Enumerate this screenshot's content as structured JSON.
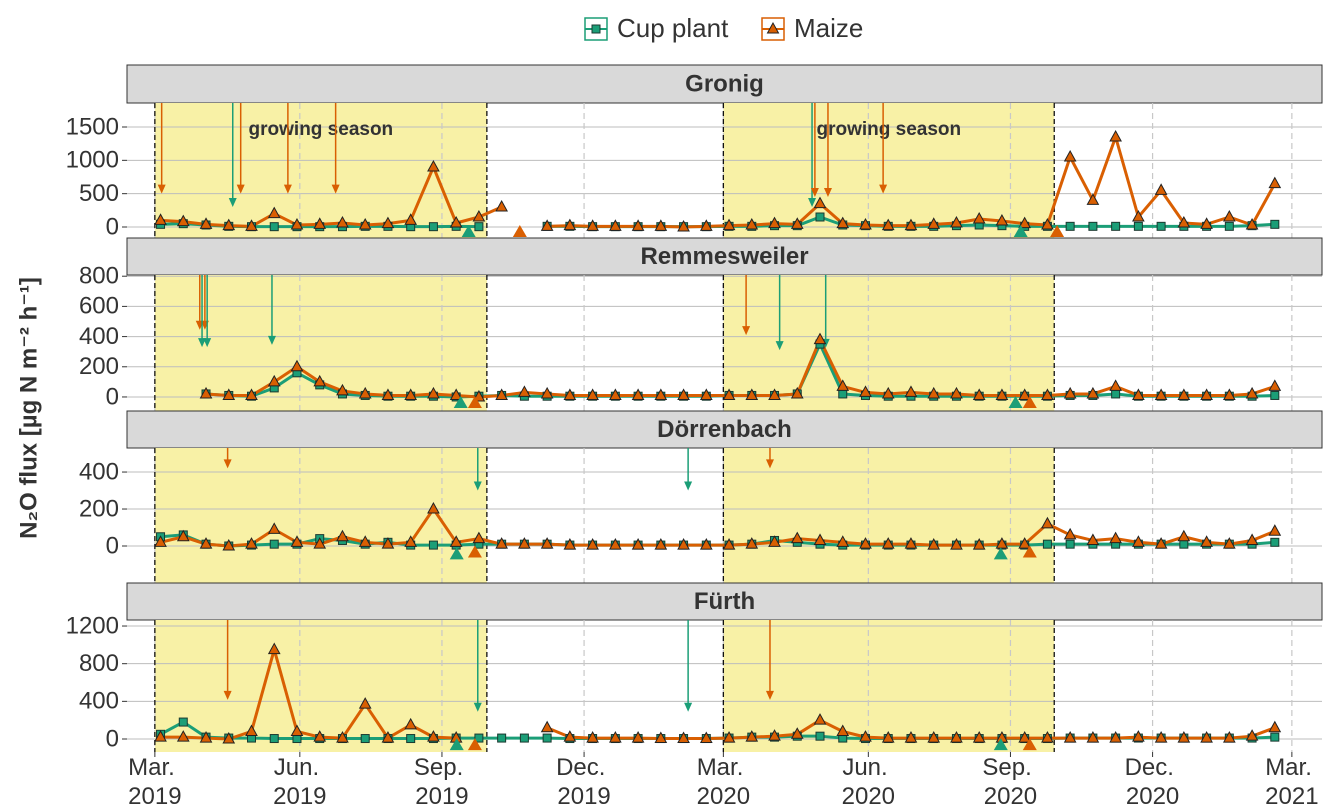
{
  "chart_data": {
    "type": "line",
    "y_label": "N₂O flux [µg N m⁻² h⁻¹]",
    "series": [
      {
        "name": "Cup plant",
        "color": "#1b9e77",
        "marker": "square"
      },
      {
        "name": "Maize",
        "color": "#d95f02",
        "marker": "triangle"
      }
    ],
    "x": [
      2019.17,
      2019.21,
      2019.25,
      2019.29,
      2019.33,
      2019.37,
      2019.41,
      2019.45,
      2019.49,
      2019.53,
      2019.57,
      2019.61,
      2019.65,
      2019.69,
      2019.73,
      2019.77,
      2019.81,
      2019.85,
      2019.89,
      2019.93,
      2019.97,
      2020.01,
      2020.05,
      2020.09,
      2020.13,
      2020.17,
      2020.21,
      2020.25,
      2020.29,
      2020.33,
      2020.37,
      2020.41,
      2020.45,
      2020.49,
      2020.53,
      2020.57,
      2020.61,
      2020.65,
      2020.69,
      2020.73,
      2020.77,
      2020.81,
      2020.85,
      2020.89,
      2020.93,
      2020.97,
      2021.01,
      2021.05,
      2021.09,
      2021.13
    ],
    "xlim": [
      2019.111,
      2021.213
    ],
    "xticks": [
      {
        "value": 2019.16,
        "label": "Mar. 2019"
      },
      {
        "value": 2019.415,
        "label": "Jun. 2019"
      },
      {
        "value": 2019.665,
        "label": "Sep. 2019"
      },
      {
        "value": 2019.915,
        "label": "Dec. 2019"
      },
      {
        "value": 2020.16,
        "label": "Mar. 2020"
      },
      {
        "value": 2020.415,
        "label": "Jun. 2020"
      },
      {
        "value": 2020.665,
        "label": "Sep. 2020"
      },
      {
        "value": 2020.915,
        "label": "Dec. 2020"
      },
      {
        "value": 2021.16,
        "label": "Mar. 2021"
      }
    ],
    "seasons": [
      [
        2019.16,
        2019.744
      ],
      [
        2020.16,
        2020.742
      ]
    ],
    "season_color": "#f8f1a6",
    "panels": [
      {
        "title": "Gronig",
        "ylim": [
          -165,
          1860
        ],
        "yticks": [
          0,
          500,
          1000,
          1500
        ],
        "season_labels": [
          "growing season",
          "growing season"
        ],
        "values": [
          [
            40,
            50,
            30,
            10,
            5,
            5,
            5,
            5,
            5,
            10,
            10,
            5,
            5,
            10,
            5,
            null,
            null,
            10,
            10,
            5,
            5,
            5,
            5,
            5,
            5,
            10,
            10,
            20,
            20,
            150,
            30,
            20,
            10,
            10,
            10,
            20,
            30,
            20,
            10,
            10,
            10,
            10,
            10,
            10,
            10,
            10,
            10,
            10,
            20,
            40
          ],
          [
            100,
            80,
            40,
            20,
            10,
            200,
            30,
            40,
            60,
            30,
            50,
            100,
            900,
            60,
            150,
            300,
            null,
            10,
            20,
            10,
            10,
            10,
            10,
            0,
            10,
            20,
            30,
            50,
            40,
            350,
            50,
            30,
            20,
            20,
            40,
            60,
            120,
            90,
            50,
            30,
            1050,
            400,
            1350,
            150,
            550,
            60,
            40,
            150,
            30,
            650
          ]
        ],
        "arrows": [
          {
            "x": 2019.172,
            "y": 500,
            "color": "#d95f02"
          },
          {
            "x": 2019.311,
            "y": 500,
            "color": "#d95f02"
          },
          {
            "x": 2019.394,
            "y": 500,
            "color": "#d95f02"
          },
          {
            "x": 2019.478,
            "y": 500,
            "color": "#d95f02"
          },
          {
            "x": 2019.297,
            "y": 300,
            "color": "#1b9e77"
          },
          {
            "x": 2020.316,
            "y": 300,
            "color": "#1b9e77"
          },
          {
            "x": 2020.321,
            "y": 450,
            "color": "#d95f02"
          },
          {
            "x": 2020.344,
            "y": 450,
            "color": "#d95f02"
          },
          {
            "x": 2020.441,
            "y": 500,
            "color": "#d95f02"
          }
        ],
        "markers": [
          {
            "x": 2019.712,
            "y": -75,
            "color": "#1b9e77"
          },
          {
            "x": 2019.802,
            "y": -75,
            "color": "#d95f02"
          },
          {
            "x": 2020.683,
            "y": -75,
            "color": "#1b9e77"
          },
          {
            "x": 2020.747,
            "y": -75,
            "color": "#d95f02"
          }
        ]
      },
      {
        "title": "Remmesweiler",
        "ylim": [
          -93,
          808
        ],
        "yticks": [
          0,
          200,
          400,
          600,
          800
        ],
        "values": [
          [
            null,
            null,
            20,
            10,
            5,
            60,
            160,
            80,
            20,
            10,
            5,
            5,
            5,
            0,
            5,
            10,
            5,
            5,
            5,
            5,
            5,
            5,
            5,
            5,
            5,
            10,
            10,
            10,
            20,
            350,
            20,
            10,
            5,
            5,
            5,
            5,
            5,
            5,
            5,
            5,
            10,
            10,
            20,
            5,
            5,
            5,
            5,
            5,
            5,
            10
          ],
          [
            null,
            null,
            20,
            10,
            10,
            100,
            200,
            100,
            40,
            20,
            10,
            10,
            20,
            10,
            0,
            10,
            30,
            20,
            10,
            10,
            10,
            10,
            10,
            10,
            10,
            10,
            10,
            10,
            20,
            380,
            70,
            30,
            20,
            30,
            20,
            20,
            10,
            10,
            10,
            10,
            20,
            20,
            70,
            10,
            10,
            10,
            10,
            10,
            20,
            70
          ]
        ],
        "arrows": [
          {
            "x": 2019.239,
            "y": 445,
            "color": "#d95f02"
          },
          {
            "x": 2019.248,
            "y": 445,
            "color": "#d95f02"
          },
          {
            "x": 2019.243,
            "y": 330,
            "color": "#1b9e77"
          },
          {
            "x": 2019.252,
            "y": 330,
            "color": "#1b9e77"
          },
          {
            "x": 2019.366,
            "y": 345,
            "color": "#1b9e77"
          },
          {
            "x": 2020.2,
            "y": 410,
            "color": "#d95f02"
          },
          {
            "x": 2020.259,
            "y": 310,
            "color": "#1b9e77"
          },
          {
            "x": 2020.34,
            "y": 325,
            "color": "#1b9e77"
          }
        ],
        "markers": [
          {
            "x": 2019.698,
            "y": -40,
            "color": "#1b9e77"
          },
          {
            "x": 2019.723,
            "y": -40,
            "color": "#d95f02"
          },
          {
            "x": 2020.674,
            "y": -40,
            "color": "#1b9e77"
          },
          {
            "x": 2020.699,
            "y": -40,
            "color": "#d95f02"
          }
        ]
      },
      {
        "title": "Dörrenbach",
        "ylim": [
          -200,
          530
        ],
        "yticks": [
          0,
          200,
          400
        ],
        "values": [
          [
            50,
            60,
            10,
            0,
            5,
            10,
            10,
            40,
            30,
            10,
            20,
            5,
            5,
            5,
            10,
            10,
            10,
            10,
            5,
            5,
            5,
            5,
            5,
            5,
            5,
            5,
            10,
            30,
            20,
            10,
            5,
            5,
            5,
            5,
            5,
            5,
            5,
            5,
            5,
            10,
            10,
            10,
            10,
            10,
            10,
            10,
            10,
            10,
            10,
            20
          ],
          [
            20,
            50,
            10,
            0,
            10,
            90,
            20,
            10,
            50,
            20,
            10,
            20,
            200,
            20,
            40,
            10,
            10,
            10,
            5,
            5,
            5,
            5,
            5,
            5,
            5,
            5,
            10,
            20,
            40,
            30,
            20,
            10,
            10,
            10,
            5,
            5,
            5,
            10,
            10,
            120,
            60,
            30,
            40,
            20,
            10,
            50,
            20,
            10,
            30,
            80
          ]
        ],
        "arrows": [
          {
            "x": 2019.288,
            "y": 420,
            "color": "#d95f02"
          },
          {
            "x": 2019.728,
            "y": 300,
            "color": "#1b9e77"
          },
          {
            "x": 2020.098,
            "y": 300,
            "color": "#1b9e77"
          },
          {
            "x": 2020.242,
            "y": 420,
            "color": "#d95f02"
          }
        ],
        "markers": [
          {
            "x": 2019.691,
            "y": -45,
            "color": "#1b9e77"
          },
          {
            "x": 2019.723,
            "y": -35,
            "color": "#d95f02"
          },
          {
            "x": 2020.648,
            "y": -45,
            "color": "#1b9e77"
          },
          {
            "x": 2020.699,
            "y": -35,
            "color": "#d95f02"
          }
        ]
      },
      {
        "title": "Fürth",
        "ylim": [
          -138,
          1264
        ],
        "yticks": [
          0,
          400,
          800,
          1200
        ],
        "values": [
          [
            50,
            180,
            20,
            10,
            10,
            5,
            5,
            5,
            5,
            5,
            5,
            5,
            5,
            10,
            10,
            10,
            10,
            10,
            5,
            5,
            5,
            5,
            5,
            5,
            5,
            10,
            20,
            20,
            30,
            30,
            10,
            5,
            5,
            5,
            5,
            5,
            5,
            5,
            5,
            5,
            10,
            10,
            10,
            10,
            10,
            10,
            10,
            10,
            10,
            20
          ],
          [
            20,
            20,
            10,
            0,
            80,
            950,
            80,
            20,
            10,
            370,
            10,
            150,
            20,
            10,
            null,
            null,
            null,
            120,
            20,
            10,
            10,
            10,
            5,
            5,
            5,
            10,
            20,
            30,
            50,
            200,
            80,
            20,
            10,
            10,
            10,
            10,
            10,
            10,
            10,
            10,
            10,
            10,
            10,
            20,
            10,
            10,
            10,
            10,
            30,
            120
          ]
        ],
        "arrows": [
          {
            "x": 2019.288,
            "y": 415,
            "color": "#d95f02"
          },
          {
            "x": 2019.728,
            "y": 290,
            "color": "#1b9e77"
          },
          {
            "x": 2020.098,
            "y": 290,
            "color": "#1b9e77"
          },
          {
            "x": 2020.242,
            "y": 415,
            "color": "#d95f02"
          }
        ],
        "markers": [
          {
            "x": 2019.691,
            "y": -65,
            "color": "#1b9e77"
          },
          {
            "x": 2019.723,
            "y": -65,
            "color": "#d95f02"
          },
          {
            "x": 2020.648,
            "y": -65,
            "color": "#1b9e77"
          },
          {
            "x": 2020.699,
            "y": -65,
            "color": "#d95f02"
          }
        ]
      }
    ]
  }
}
